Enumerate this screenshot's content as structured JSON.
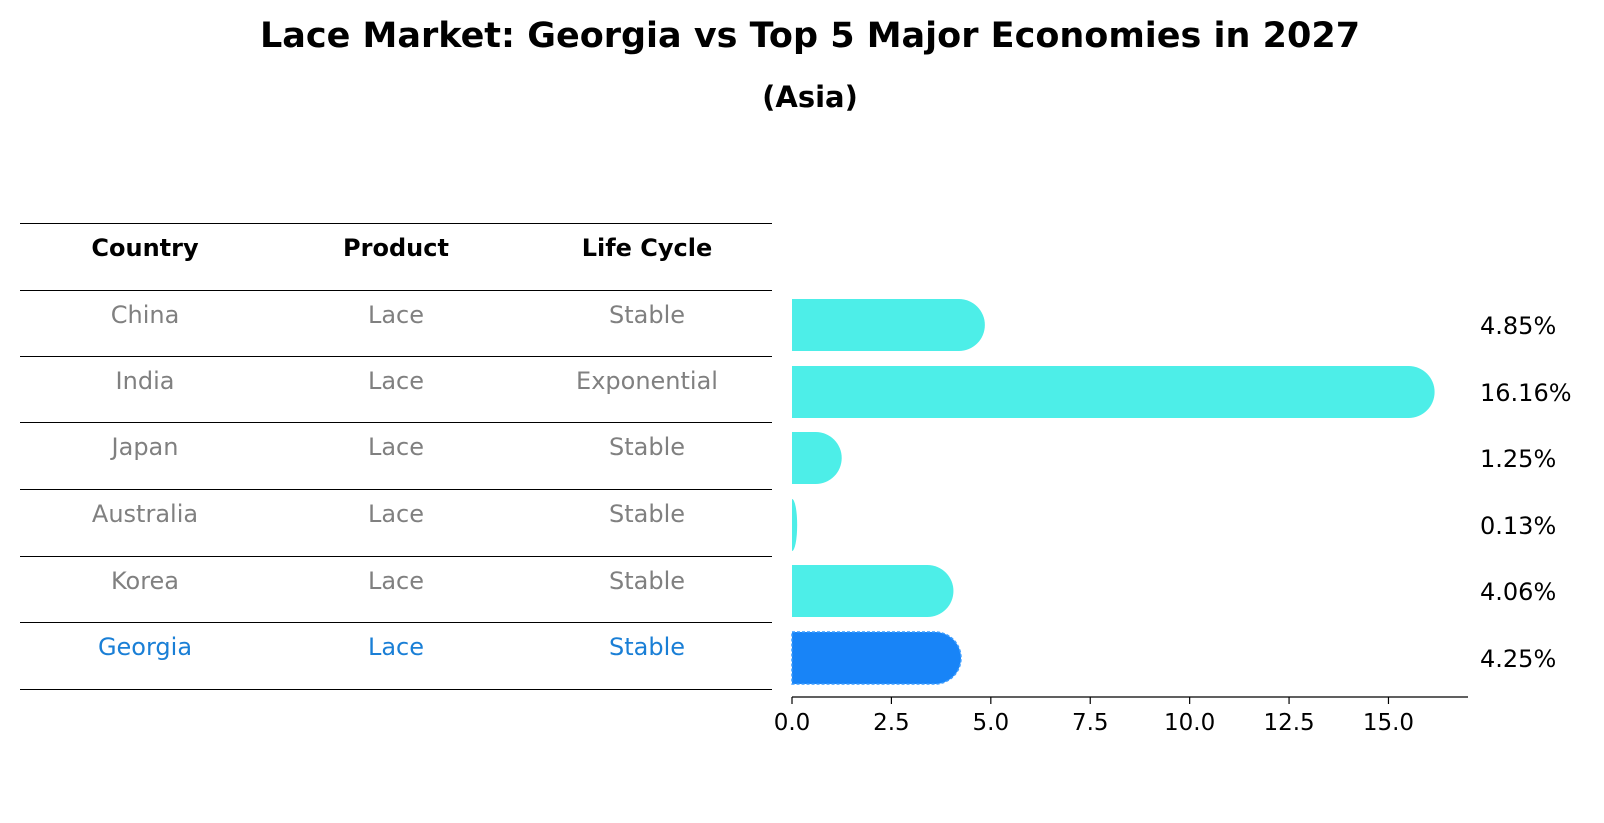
{
  "chart_data": {
    "type": "bar",
    "title": "Lace Market: Georgia vs Top 5 Major Economies in 2027",
    "subtitle": "(Asia)",
    "table": {
      "headers": [
        "Country",
        "Product",
        "Life Cycle"
      ],
      "rows": [
        [
          "China",
          "Lace",
          "Stable"
        ],
        [
          "India",
          "Lace",
          "Exponential"
        ],
        [
          "Japan",
          "Lace",
          "Stable"
        ],
        [
          "Australia",
          "Lace",
          "Stable"
        ],
        [
          "Korea",
          "Lace",
          "Stable"
        ],
        [
          "Georgia",
          "Lace",
          "Stable"
        ]
      ],
      "highlight_row": 5
    },
    "categories": [
      "China",
      "India",
      "Japan",
      "Australia",
      "Korea",
      "Georgia"
    ],
    "values": [
      4.85,
      16.16,
      1.25,
      0.13,
      4.06,
      4.25
    ],
    "value_labels": [
      "4.85%",
      "16.16%",
      "1.25%",
      "0.13%",
      "4.06%",
      "4.25%"
    ],
    "xlim": [
      0,
      17
    ],
    "xticks": [
      0.0,
      2.5,
      5.0,
      7.5,
      10.0,
      12.5,
      15.0
    ],
    "xtick_labels": [
      "0.0",
      "2.5",
      "5.0",
      "7.5",
      "10.0",
      "12.5",
      "15.0"
    ],
    "colors": {
      "default": "#4deee8",
      "highlight": "#1884f7",
      "text_muted": "#808080",
      "text_highlight": "#1a7fd6"
    }
  }
}
